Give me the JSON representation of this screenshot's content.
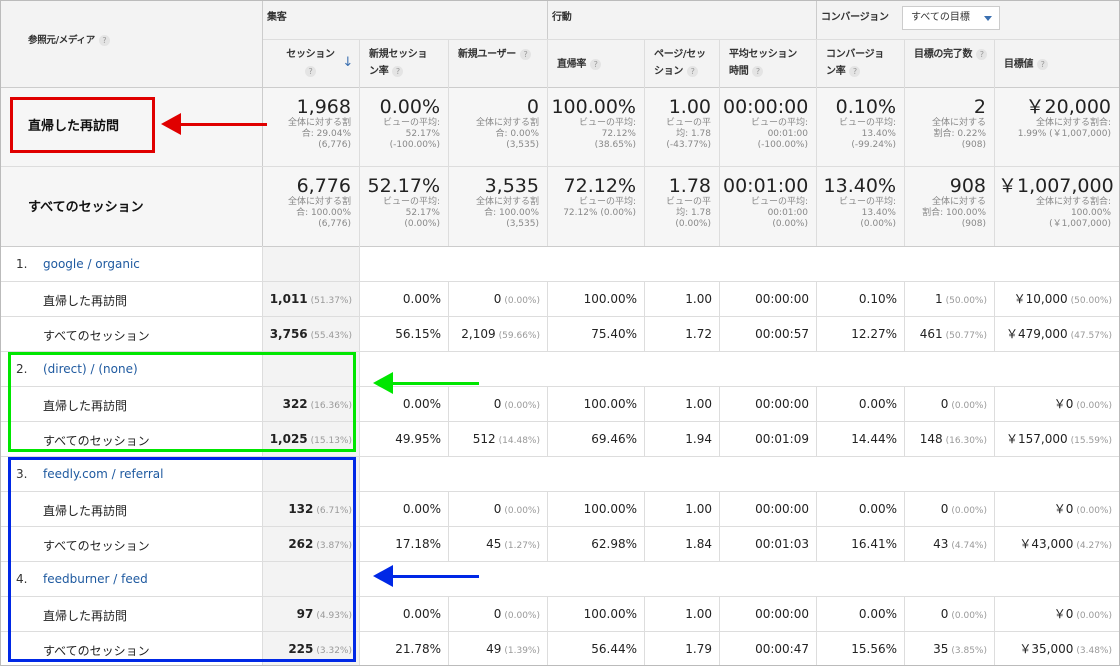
{
  "header": {
    "dimension_label": "参照元/メディア",
    "group_acquisition": "集客",
    "group_behavior": "行動",
    "group_conversion": "コンバージョン",
    "goal_dropdown": "すべての目標",
    "columns": [
      {
        "l1": "セッション",
        "l2": ""
      },
      {
        "l1": "新規セッショ",
        "l2": "ン率"
      },
      {
        "l1": "新規ユーザー",
        "l2": ""
      },
      {
        "l1": "直帰率",
        "l2": ""
      },
      {
        "l1": "ページ/セッ",
        "l2": "ション"
      },
      {
        "l1": "平均セッション",
        "l2": "時間"
      },
      {
        "l1": "コンバージョ",
        "l2": "ン率"
      },
      {
        "l1": "目標の完了数",
        "l2": ""
      },
      {
        "l1": "目標値",
        "l2": ""
      }
    ],
    "help_glyph": "?",
    "sort_glyph": "↓"
  },
  "summary": [
    {
      "label": "直帰した再訪問",
      "cells": [
        {
          "big": "1,968",
          "s1": "全体に対する割",
          "s2": "合: 29.04%",
          "s3": "(6,776)"
        },
        {
          "big": "0.00%",
          "s1": "ビューの平均:",
          "s2": "52.17%",
          "s3": "(-100.00%)"
        },
        {
          "big": "0",
          "s1": "全体に対する割",
          "s2": "合: 0.00%",
          "s3": "(3,535)"
        },
        {
          "big": "100.00%",
          "s1": "ビューの平均:",
          "s2": "72.12%",
          "s3": "(38.65%)"
        },
        {
          "big": "1.00",
          "s1": "ビューの平",
          "s2": "均: 1.78",
          "s3": "(-43.77%)"
        },
        {
          "big": "00:00:00",
          "s1": "ビューの平均:",
          "s2": "00:01:00",
          "s3": "(-100.00%)"
        },
        {
          "big": "0.10%",
          "s1": "ビューの平均:",
          "s2": "13.40%",
          "s3": "(-99.24%)"
        },
        {
          "big": "2",
          "s1": "全体に対する",
          "s2": "割合: 0.22%",
          "s3": "(908)"
        },
        {
          "big": "￥20,000",
          "s1": "全体に対する割合:",
          "s2": "1.99% (￥1,007,000)",
          "s3": ""
        }
      ]
    },
    {
      "label": "すべてのセッション",
      "cells": [
        {
          "big": "6,776",
          "s1": "全体に対する割",
          "s2": "合: 100.00%",
          "s3": "(6,776)"
        },
        {
          "big": "52.17%",
          "s1": "ビューの平均:",
          "s2": "52.17%",
          "s3": "(0.00%)"
        },
        {
          "big": "3,535",
          "s1": "全体に対する割",
          "s2": "合: 100.00%",
          "s3": "(3,535)"
        },
        {
          "big": "72.12%",
          "s1": "ビューの平均:",
          "s2": "72.12% (0.00%)",
          "s3": ""
        },
        {
          "big": "1.78",
          "s1": "ビューの平",
          "s2": "均: 1.78",
          "s3": "(0.00%)"
        },
        {
          "big": "00:01:00",
          "s1": "ビューの平均:",
          "s2": "00:01:00",
          "s3": "(0.00%)"
        },
        {
          "big": "13.40%",
          "s1": "ビューの平均:",
          "s2": "13.40%",
          "s3": "(0.00%)"
        },
        {
          "big": "908",
          "s1": "全体に対する",
          "s2": "割合: 100.00%",
          "s3": "(908)"
        },
        {
          "big": "￥1,007,000",
          "s1": "全体に対する割合:",
          "s2": "100.00%",
          "s3": "(￥1,007,000)"
        }
      ]
    }
  ],
  "sources": [
    {
      "num": "1.",
      "name": "google / organic",
      "rows": [
        {
          "label": "直帰した再訪問",
          "cells": [
            [
              "1,011",
              "(51.37%)"
            ],
            [
              "0.00%",
              ""
            ],
            [
              "0",
              "(0.00%)"
            ],
            [
              "100.00%",
              ""
            ],
            [
              "1.00",
              ""
            ],
            [
              "00:00:00",
              ""
            ],
            [
              "0.10%",
              ""
            ],
            [
              "1",
              "(50.00%)"
            ],
            [
              "￥10,000",
              "(50.00%)"
            ]
          ]
        },
        {
          "label": "すべてのセッション",
          "cells": [
            [
              "3,756",
              "(55.43%)"
            ],
            [
              "56.15%",
              ""
            ],
            [
              "2,109",
              "(59.66%)"
            ],
            [
              "75.40%",
              ""
            ],
            [
              "1.72",
              ""
            ],
            [
              "00:00:57",
              ""
            ],
            [
              "12.27%",
              ""
            ],
            [
              "461",
              "(50.77%)"
            ],
            [
              "￥479,000",
              "(47.57%)"
            ]
          ]
        }
      ]
    },
    {
      "num": "2.",
      "name": "(direct) / (none)",
      "rows": [
        {
          "label": "直帰した再訪問",
          "cells": [
            [
              "322",
              "(16.36%)"
            ],
            [
              "0.00%",
              ""
            ],
            [
              "0",
              "(0.00%)"
            ],
            [
              "100.00%",
              ""
            ],
            [
              "1.00",
              ""
            ],
            [
              "00:00:00",
              ""
            ],
            [
              "0.00%",
              ""
            ],
            [
              "0",
              "(0.00%)"
            ],
            [
              "￥0",
              "(0.00%)"
            ]
          ]
        },
        {
          "label": "すべてのセッション",
          "cells": [
            [
              "1,025",
              "(15.13%)"
            ],
            [
              "49.95%",
              ""
            ],
            [
              "512",
              "(14.48%)"
            ],
            [
              "69.46%",
              ""
            ],
            [
              "1.94",
              ""
            ],
            [
              "00:01:09",
              ""
            ],
            [
              "14.44%",
              ""
            ],
            [
              "148",
              "(16.30%)"
            ],
            [
              "￥157,000",
              "(15.59%)"
            ]
          ]
        }
      ]
    },
    {
      "num": "3.",
      "name": "feedly.com / referral",
      "rows": [
        {
          "label": "直帰した再訪問",
          "cells": [
            [
              "132",
              "(6.71%)"
            ],
            [
              "0.00%",
              ""
            ],
            [
              "0",
              "(0.00%)"
            ],
            [
              "100.00%",
              ""
            ],
            [
              "1.00",
              ""
            ],
            [
              "00:00:00",
              ""
            ],
            [
              "0.00%",
              ""
            ],
            [
              "0",
              "(0.00%)"
            ],
            [
              "￥0",
              "(0.00%)"
            ]
          ]
        },
        {
          "label": "すべてのセッション",
          "cells": [
            [
              "262",
              "(3.87%)"
            ],
            [
              "17.18%",
              ""
            ],
            [
              "45",
              "(1.27%)"
            ],
            [
              "62.98%",
              ""
            ],
            [
              "1.84",
              ""
            ],
            [
              "00:01:03",
              ""
            ],
            [
              "16.41%",
              ""
            ],
            [
              "43",
              "(4.74%)"
            ],
            [
              "￥43,000",
              "(4.27%)"
            ]
          ]
        }
      ]
    },
    {
      "num": "4.",
      "name": "feedburner / feed",
      "rows": [
        {
          "label": "直帰した再訪問",
          "cells": [
            [
              "97",
              "(4.93%)"
            ],
            [
              "0.00%",
              ""
            ],
            [
              "0",
              "(0.00%)"
            ],
            [
              "100.00%",
              ""
            ],
            [
              "1.00",
              ""
            ],
            [
              "00:00:00",
              ""
            ],
            [
              "0.00%",
              ""
            ],
            [
              "0",
              "(0.00%)"
            ],
            [
              "￥0",
              "(0.00%)"
            ]
          ]
        },
        {
          "label": "すべてのセッション",
          "cells": [
            [
              "225",
              "(3.32%)"
            ],
            [
              "21.78%",
              ""
            ],
            [
              "49",
              "(1.39%)"
            ],
            [
              "56.44%",
              ""
            ],
            [
              "1.79",
              ""
            ],
            [
              "00:00:47",
              ""
            ],
            [
              "15.56%",
              ""
            ],
            [
              "35",
              "(3.85%)"
            ],
            [
              "￥35,000",
              "(3.48%)"
            ]
          ]
        }
      ]
    }
  ],
  "annotations": {
    "red_color": "#e00000",
    "green_color": "#00e600",
    "blue_color": "#0028e6"
  }
}
